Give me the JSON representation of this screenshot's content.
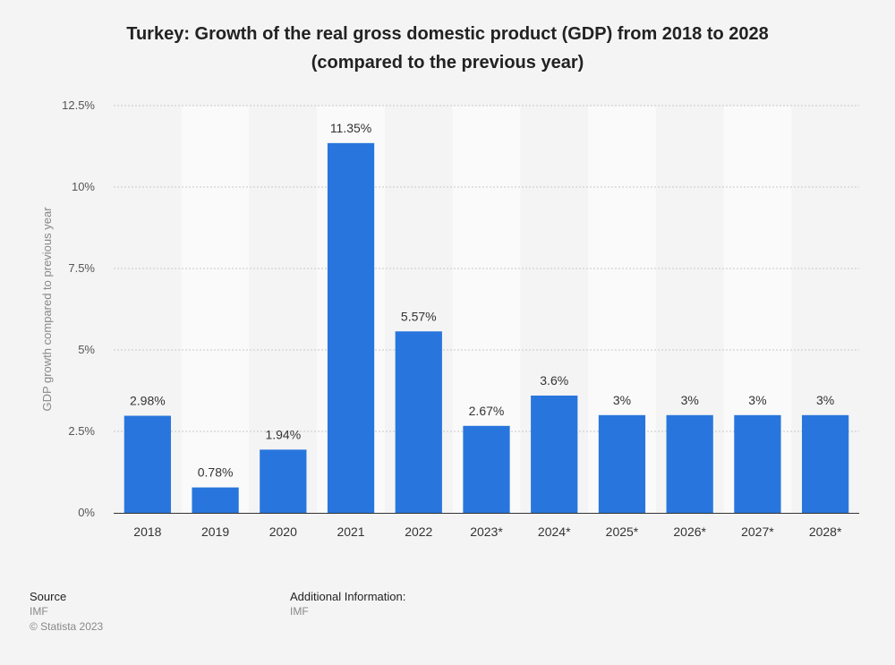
{
  "chart_data": {
    "type": "bar",
    "title_line1": "Turkey: Growth of the real gross domestic product (GDP) from 2018 to 2028",
    "title_line2": "(compared to the previous year)",
    "xlabel": "",
    "ylabel": "GDP growth compared to previous year",
    "categories": [
      "2018",
      "2019",
      "2020",
      "2021",
      "2022",
      "2023*",
      "2024*",
      "2025*",
      "2026*",
      "2027*",
      "2028*"
    ],
    "values": [
      2.98,
      0.78,
      1.94,
      11.35,
      5.57,
      2.67,
      3.6,
      3,
      3,
      3,
      3
    ],
    "value_labels": [
      "2.98%",
      "0.78%",
      "1.94%",
      "11.35%",
      "5.57%",
      "2.67%",
      "3.6%",
      "3%",
      "3%",
      "3%",
      "3%"
    ],
    "ylim": [
      0,
      12.5
    ],
    "yticks": [
      0,
      2.5,
      5,
      7.5,
      10,
      12.5
    ],
    "ytick_labels": [
      "0%",
      "2.5%",
      "5%",
      "7.5%",
      "10%",
      "12.5%"
    ],
    "grid": true,
    "bar_color": "#2876dd",
    "band_color": "#fafafa",
    "background_color": "#f4f4f4"
  },
  "footer": {
    "source_heading": "Source",
    "source_lines": [
      "IMF",
      "© Statista 2023"
    ],
    "additional_heading": "Additional Information:",
    "additional_lines": [
      "IMF"
    ]
  }
}
